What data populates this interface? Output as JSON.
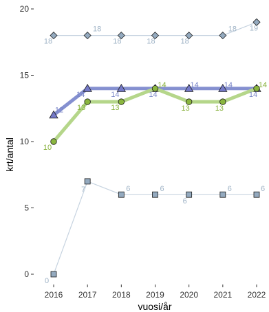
{
  "chart_data": {
    "type": "line",
    "x": [
      2016,
      2017,
      2018,
      2019,
      2020,
      2021,
      2022
    ],
    "xlabel": "vuosi/år",
    "ylabel": "krt/antal",
    "ylim": [
      0,
      20
    ],
    "yticks": [
      0,
      5,
      10,
      15,
      20
    ],
    "grid": false,
    "series": [
      {
        "values": [
          18,
          18,
          18,
          18,
          18,
          18,
          19
        ],
        "marker": "diamond",
        "line_color": "#c6d3e0",
        "marker_fill": "#94aabf",
        "label_color": "#9fb3c6",
        "labels": [
          "18",
          "18",
          "18",
          "18",
          "18",
          "18",
          "19"
        ]
      },
      {
        "values": [
          12,
          14,
          14,
          14,
          14,
          14,
          14
        ],
        "marker": "triangle",
        "line_color": "#8590d0",
        "marker_fill": "#7479c8",
        "label_color": "#7a86c8",
        "labels": [
          "12",
          "14",
          "14",
          "14",
          "14",
          "14",
          "14"
        ]
      },
      {
        "values": [
          10,
          13,
          13,
          14,
          13,
          13,
          14
        ],
        "marker": "circle",
        "line_color": "#b5d68a",
        "marker_fill": "#8ab63e",
        "label_color": "#88b13c",
        "labels": [
          "10",
          "13",
          "13",
          "14",
          "13",
          "13",
          "14"
        ]
      },
      {
        "values": [
          0,
          7,
          6,
          6,
          6,
          6,
          6
        ],
        "marker": "square",
        "line_color": "#c6d3e0",
        "marker_fill": "#94aabf",
        "label_color": "#9fb3c6",
        "labels": [
          "0",
          "7",
          "6",
          "6",
          "6",
          "6",
          "6"
        ]
      }
    ]
  }
}
